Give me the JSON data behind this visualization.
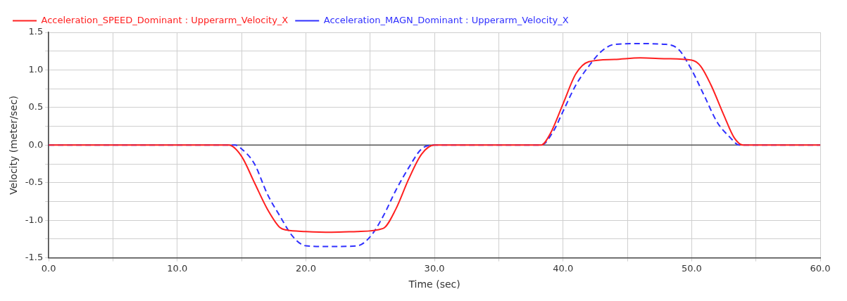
{
  "chart_data": {
    "type": "line",
    "xlabel": "Time (sec)",
    "ylabel": "Velocity (meter/sec)",
    "xlim": [
      0,
      60
    ],
    "xticks": [
      {
        "value": 0,
        "label": "0.0"
      },
      {
        "value": 5,
        "label": null
      },
      {
        "value": 10,
        "label": "10.0"
      },
      {
        "value": 15,
        "label": null
      },
      {
        "value": 20,
        "label": "20.0"
      },
      {
        "value": 25,
        "label": null
      },
      {
        "value": 30,
        "label": "30.0"
      },
      {
        "value": 35,
        "label": null
      },
      {
        "value": 40,
        "label": "40.0"
      },
      {
        "value": 45,
        "label": null
      },
      {
        "value": 50,
        "label": "50.0"
      },
      {
        "value": 55,
        "label": null
      },
      {
        "value": 60,
        "label": "60.0"
      }
    ],
    "ylim": [
      -1.5,
      1.5
    ],
    "yticks": [
      {
        "value": -1.5,
        "label": "-1.5"
      },
      {
        "value": -1.25,
        "label": null
      },
      {
        "value": -1,
        "label": "-1.0"
      },
      {
        "value": -0.75,
        "label": null
      },
      {
        "value": -0.5,
        "label": "-0.5"
      },
      {
        "value": -0.25,
        "label": null
      },
      {
        "value": 0,
        "label": "0.0"
      },
      {
        "value": 0.25,
        "label": null
      },
      {
        "value": 0.5,
        "label": "0.5"
      },
      {
        "value": 0.75,
        "label": null
      },
      {
        "value": 1,
        "label": "1.0"
      },
      {
        "value": 1.25,
        "label": null
      },
      {
        "value": 1.5,
        "label": "1.5"
      }
    ],
    "grid": true,
    "legend": "top left",
    "marker": "none",
    "series": [
      {
        "name": "Acceleration_SPEED_Dominant : Upperarm_Velocity_X",
        "color": "#ff2020",
        "line_style": "solid",
        "x": [
          0,
          14,
          15,
          16,
          17,
          18,
          18.5,
          20,
          22,
          24,
          26,
          27,
          28,
          29,
          30,
          38.3,
          39,
          40,
          41,
          42,
          44,
          46,
          48,
          50,
          50.7,
          51.5,
          52.5,
          53.3,
          54,
          60
        ],
        "values": [
          0,
          0,
          -0.15,
          -0.5,
          -0.85,
          -1.1,
          -1.13,
          -1.15,
          -1.16,
          -1.15,
          -1.11,
          -0.85,
          -0.45,
          -0.12,
          0,
          0,
          0.15,
          0.55,
          0.95,
          1.11,
          1.14,
          1.16,
          1.15,
          1.13,
          1.05,
          0.8,
          0.4,
          0.1,
          0,
          0
        ]
      },
      {
        "name": "Acceleration_MAGN_Dominant : Upperarm_Velocity_X",
        "color": "#3030ff",
        "line_style": "dashed",
        "x": [
          0,
          14.5,
          15,
          16,
          17,
          18,
          19,
          20,
          22,
          24,
          25,
          26,
          27,
          28,
          29,
          30,
          38.3,
          39.3,
          40,
          41,
          42,
          43,
          44,
          46,
          48,
          49,
          50,
          51,
          52,
          53,
          53.7,
          60
        ],
        "values": [
          0,
          0,
          -0.05,
          -0.25,
          -0.65,
          -0.95,
          -1.22,
          -1.34,
          -1.35,
          -1.34,
          -1.22,
          -0.95,
          -0.6,
          -0.3,
          -0.05,
          0,
          0,
          0.2,
          0.45,
          0.8,
          1.05,
          1.25,
          1.34,
          1.35,
          1.34,
          1.27,
          1,
          0.65,
          0.3,
          0.1,
          0,
          0
        ]
      }
    ]
  }
}
